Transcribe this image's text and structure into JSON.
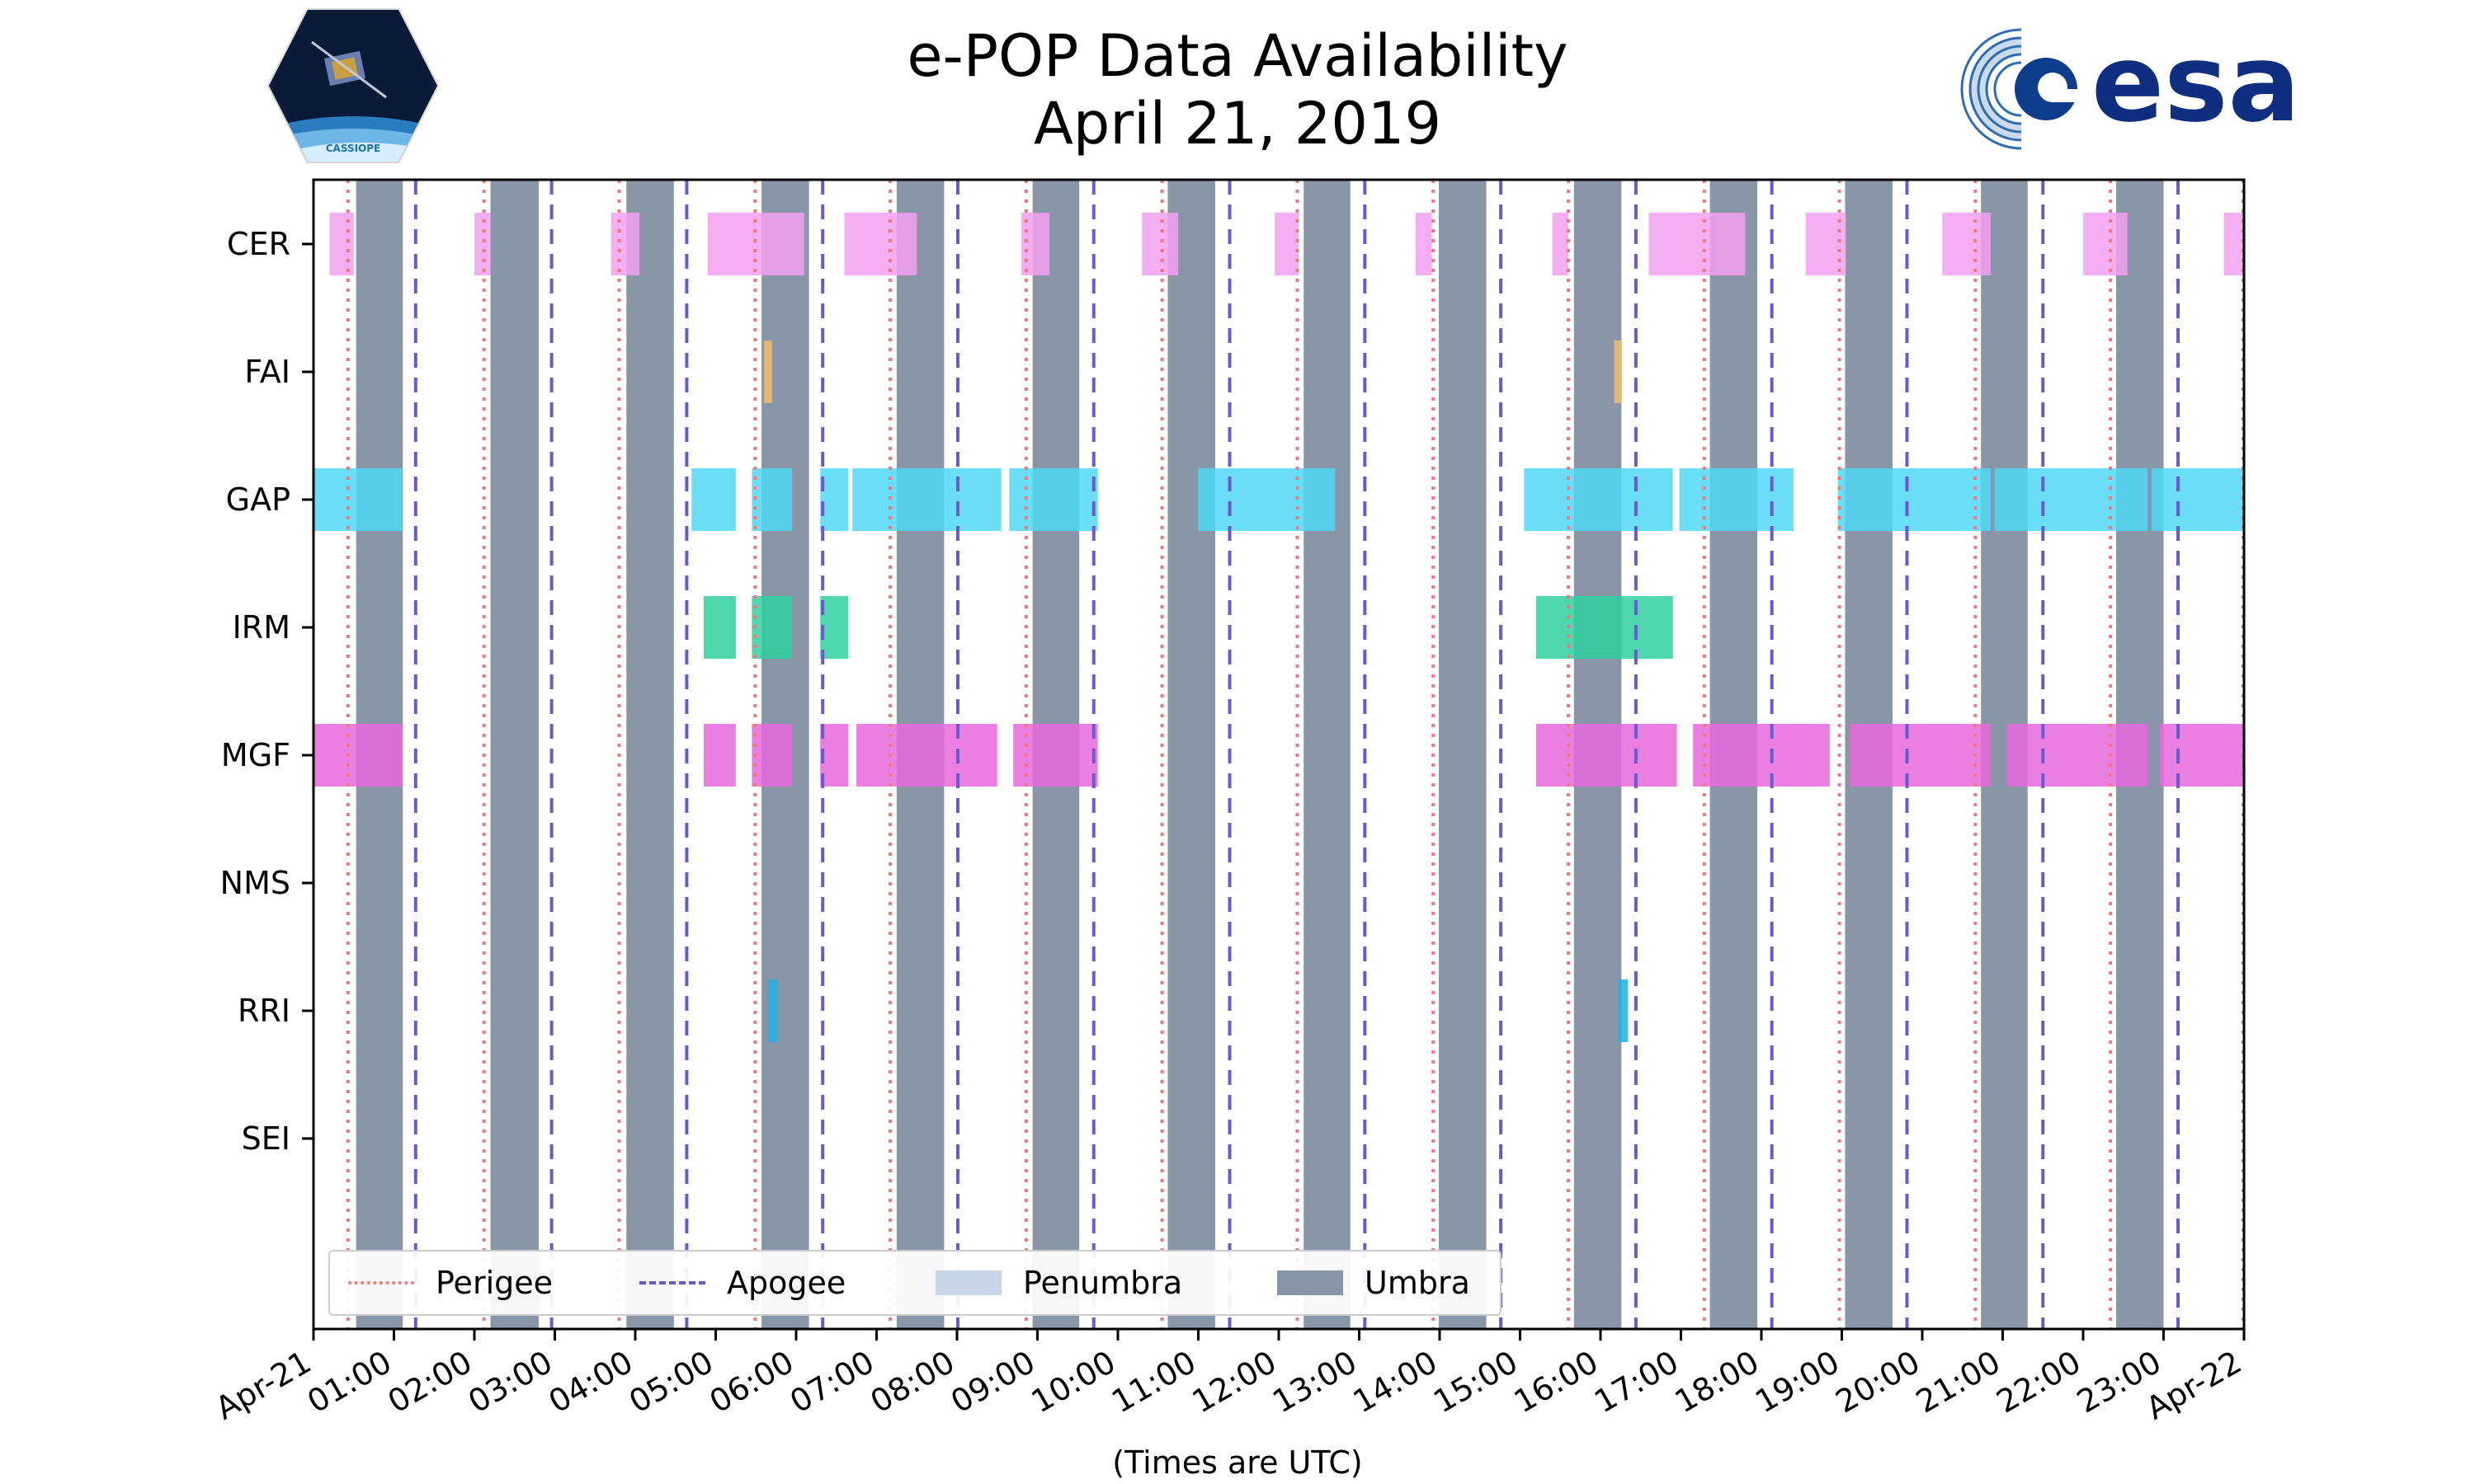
{
  "header": {
    "title_line1": "e-POP Data Availability",
    "title_line2": "April 21, 2019"
  },
  "logos": {
    "left": {
      "text": "CASSIOPE",
      "icon": "cassiope-mission-logo"
    },
    "right": {
      "text": "esa",
      "icon": "esa-logo"
    }
  },
  "colors": {
    "perigee": "#f07878",
    "apogee": "#6a5acd",
    "penumbra": "#c8d6e8",
    "umbra": "#8896a8",
    "CER": "#f5a0f0",
    "FAI": "#f0c070",
    "GAP": "#50d8f5",
    "IRM": "#30d0a0",
    "MGF": "#e868dc",
    "RRI": "#20b0e0"
  },
  "chart_data": {
    "type": "timeline",
    "title": "e-POP Data Availability April 21, 2019",
    "xlabel": "(Times are UTC)",
    "xlim": [
      0,
      24
    ],
    "x_ticks": [
      "Apr-21",
      "01:00",
      "02:00",
      "03:00",
      "04:00",
      "05:00",
      "06:00",
      "07:00",
      "08:00",
      "09:00",
      "10:00",
      "11:00",
      "12:00",
      "13:00",
      "14:00",
      "15:00",
      "16:00",
      "17:00",
      "18:00",
      "19:00",
      "20:00",
      "21:00",
      "22:00",
      "23:00",
      "Apr-22"
    ],
    "instruments": [
      "CER",
      "FAI",
      "GAP",
      "IRM",
      "MGF",
      "NMS",
      "RRI",
      "SEI"
    ],
    "perigee_hours": [
      0.43,
      2.12,
      3.8,
      5.49,
      7.17,
      8.86,
      10.55,
      12.23,
      13.92,
      15.6,
      17.29,
      18.97,
      20.66,
      22.34,
      23.99
    ],
    "apogee_hours": [
      1.27,
      2.96,
      4.64,
      6.33,
      8.01,
      9.7,
      11.39,
      13.07,
      14.76,
      16.44,
      18.13,
      19.81,
      21.5,
      23.18
    ],
    "umbra_intervals": [
      [
        0.53,
        1.11
      ],
      [
        2.2,
        2.8
      ],
      [
        3.89,
        4.48
      ],
      [
        5.57,
        6.16
      ],
      [
        7.25,
        7.84
      ],
      [
        8.94,
        9.52
      ],
      [
        10.62,
        11.21
      ],
      [
        12.31,
        12.89
      ],
      [
        13.99,
        14.58
      ],
      [
        15.67,
        16.26
      ],
      [
        17.36,
        17.95
      ],
      [
        19.04,
        19.63
      ],
      [
        20.73,
        21.31
      ],
      [
        22.41,
        23.0
      ]
    ],
    "legend": {
      "position": "lower-left",
      "entries": [
        "Perigee",
        "Apogee",
        "Penumbra",
        "Umbra"
      ]
    },
    "series": [
      {
        "name": "CER",
        "intervals": [
          [
            0.2,
            0.5
          ],
          [
            2.0,
            2.2
          ],
          [
            3.7,
            4.05
          ],
          [
            4.9,
            6.1
          ],
          [
            6.6,
            7.5
          ],
          [
            8.8,
            9.15
          ],
          [
            10.3,
            10.75
          ],
          [
            11.95,
            12.25
          ],
          [
            13.7,
            13.9
          ],
          [
            15.4,
            15.6
          ],
          [
            16.6,
            17.8
          ],
          [
            18.55,
            19.05
          ],
          [
            20.25,
            20.85
          ],
          [
            22.0,
            22.55
          ],
          [
            23.75,
            24.0
          ]
        ]
      },
      {
        "name": "FAI",
        "intervals": [
          [
            5.6,
            5.7
          ],
          [
            16.17,
            16.27
          ]
        ]
      },
      {
        "name": "GAP",
        "intervals": [
          [
            0.0,
            1.1
          ],
          [
            4.7,
            5.25
          ],
          [
            5.45,
            5.95
          ],
          [
            6.3,
            6.65
          ],
          [
            6.7,
            8.55
          ],
          [
            8.65,
            9.75
          ],
          [
            11.0,
            12.7
          ],
          [
            15.05,
            16.9
          ],
          [
            16.98,
            18.4
          ],
          [
            18.95,
            20.85
          ],
          [
            20.9,
            22.8
          ],
          [
            22.85,
            24.0
          ]
        ]
      },
      {
        "name": "IRM",
        "intervals": [
          [
            4.85,
            5.25
          ],
          [
            5.45,
            5.95
          ],
          [
            6.3,
            6.65
          ],
          [
            15.2,
            16.9
          ]
        ]
      },
      {
        "name": "MGF",
        "intervals": [
          [
            0.0,
            1.1
          ],
          [
            4.85,
            5.25
          ],
          [
            5.45,
            5.95
          ],
          [
            6.3,
            6.65
          ],
          [
            6.75,
            8.5
          ],
          [
            8.7,
            9.75
          ],
          [
            15.2,
            16.95
          ],
          [
            17.15,
            18.85
          ],
          [
            19.1,
            20.85
          ],
          [
            21.05,
            22.8
          ],
          [
            22.95,
            24.0
          ]
        ]
      },
      {
        "name": "NMS",
        "intervals": []
      },
      {
        "name": "RRI",
        "intervals": [
          [
            5.65,
            5.77
          ],
          [
            16.22,
            16.34
          ]
        ]
      },
      {
        "name": "SEI",
        "intervals": []
      }
    ]
  }
}
